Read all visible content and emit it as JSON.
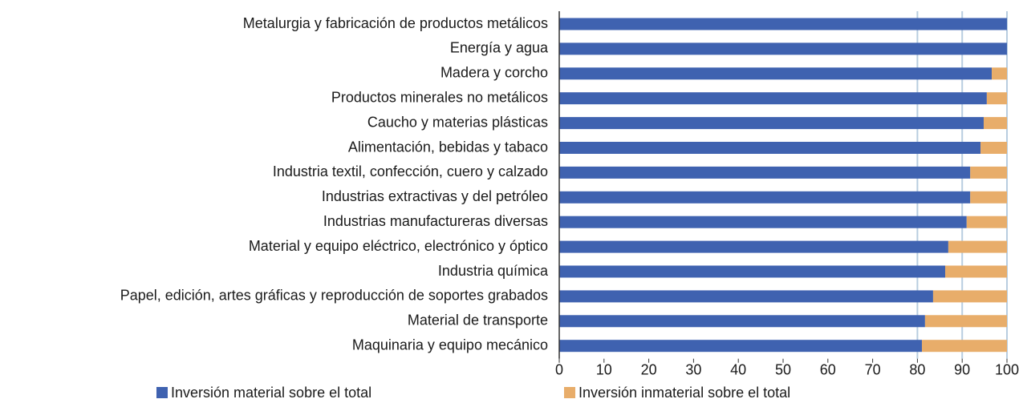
{
  "chart_data": {
    "type": "stacked_barh",
    "categories": [
      "Metalurgia y fabricación de productos metálicos",
      "Energía y agua",
      "Madera y corcho",
      "Productos minerales no metálicos",
      "Caucho y materias plásticas",
      "Alimentación, bebidas y tabaco",
      "Industria textil, confección, cuero y calzado",
      "Industrias extractivas y del petróleo",
      "Industrias manufactureras diversas",
      "Material y equipo eléctrico, electrónico y óptico",
      "Industria química",
      "Papel, edición, artes gráficas y reproducción de soportes grabados",
      "Material de transporte",
      "Maquinaria y equipo mecánico"
    ],
    "series": [
      {
        "name": "Inversión material sobre el total",
        "color": "#3f62b0",
        "values": [
          100,
          100,
          96.6,
          95.5,
          94.8,
          94.1,
          91.8,
          91.8,
          91.0,
          86.9,
          86.2,
          83.5,
          81.7,
          81.0
        ]
      },
      {
        "name": "Inversión inmaterial sobre el total",
        "color": "#e8ad6a",
        "values": [
          0,
          0,
          3.4,
          4.5,
          5.2,
          5.9,
          8.2,
          8.2,
          9.0,
          13.1,
          13.8,
          16.5,
          18.3,
          19.0
        ]
      }
    ],
    "xlim": [
      0,
      100
    ],
    "xticks": [
      0,
      10,
      20,
      30,
      40,
      50,
      60,
      70,
      80,
      90,
      100
    ],
    "xgrid": [
      80,
      90,
      100
    ]
  }
}
